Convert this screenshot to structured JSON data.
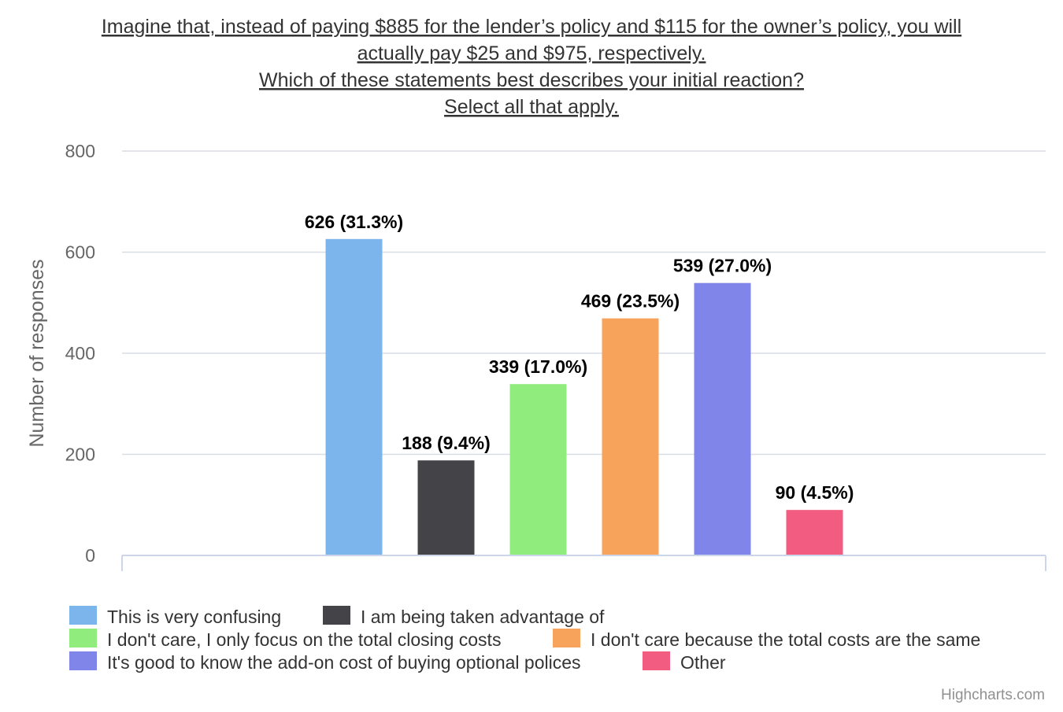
{
  "chart_data": {
    "type": "bar",
    "title_lines": [
      "Imagine that, instead of paying $885 for the lender’s policy and $115 for the owner’s policy, you will",
      "actually pay $25 and $975, respectively.",
      "Which of these statements best describes your initial reaction?",
      "Select all that apply."
    ],
    "ylabel": "Number of responses",
    "xlabel": "",
    "ylim": [
      0,
      800
    ],
    "yticks": [
      "0",
      "200",
      "400",
      "600",
      "800"
    ],
    "grid": true,
    "legend_position": "bottom",
    "series": [
      {
        "name": "This is very confusing",
        "value": 626,
        "label": "626 (31.3%)",
        "color": "#7cb5ec"
      },
      {
        "name": "I am being taken advantage of",
        "value": 188,
        "label": "188 (9.4%)",
        "color": "#434348"
      },
      {
        "name": "I don't care, I only focus on the total closing costs",
        "value": 339,
        "label": "339 (17.0%)",
        "color": "#90ed7d"
      },
      {
        "name": "I don't care because the total costs are the same",
        "value": 469,
        "label": "469 (23.5%)",
        "color": "#f7a35c"
      },
      {
        "name": "It's good to know the add-on cost of buying optional polices",
        "value": 539,
        "label": "539 (27.0%)",
        "color": "#8085e9"
      },
      {
        "name": "Other",
        "value": 90,
        "label": "90 (4.5%)",
        "color": "#f15c80"
      }
    ],
    "credits": "Highcharts.com"
  }
}
